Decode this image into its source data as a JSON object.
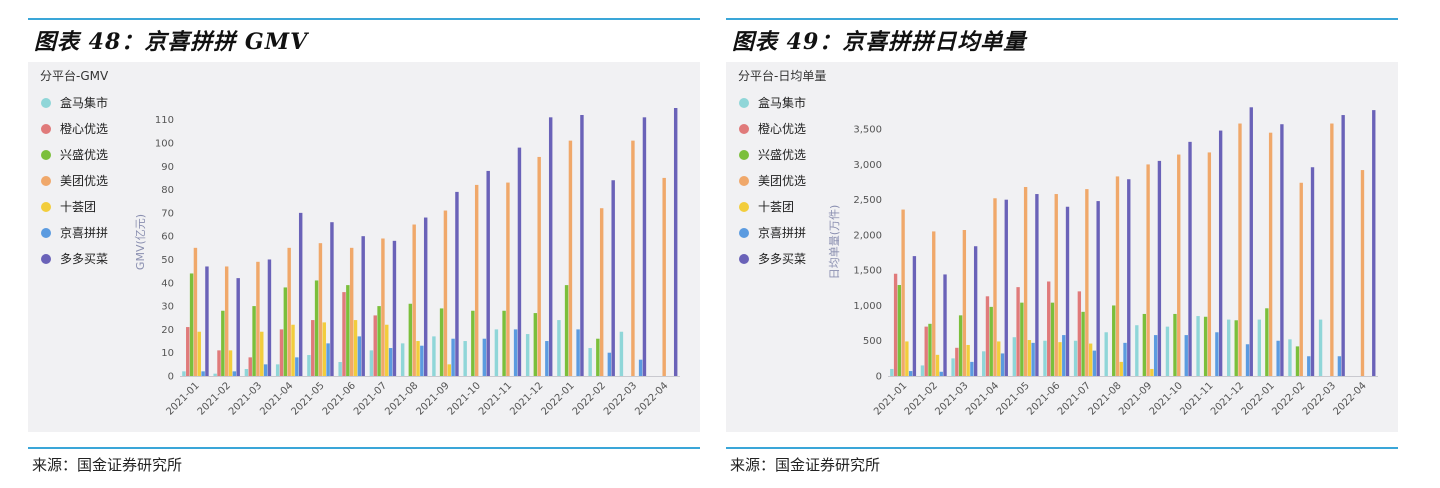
{
  "colors": {
    "hema": "#8fd6d8",
    "chengxin": "#e07a7a",
    "xingsheng": "#7bbf3b",
    "meituan": "#f0a86a",
    "shihuituan": "#f2cd3c",
    "jingxi": "#5b9be0",
    "duoduo": "#6a62b8"
  },
  "panels": [
    {
      "title": "图表 48：京喜拼拼 GMV",
      "source": "来源：国金证券研究所"
    },
    {
      "title": "图表 49：京喜拼拼日均单量",
      "source": "来源：国金证券研究所"
    }
  ],
  "chart_data": [
    {
      "type": "bar",
      "subtitle": "分平台-GMV",
      "ylabel": "GMV(亿元)",
      "ylim": [
        0,
        115
      ],
      "yticks": [
        0,
        10,
        20,
        30,
        40,
        50,
        60,
        70,
        80,
        90,
        100,
        110
      ],
      "legend_position": "left",
      "categories": [
        "2021-01",
        "2021-02",
        "2021-03",
        "2021-04",
        "2021-05",
        "2021-06",
        "2021-07",
        "2021-08",
        "2021-09",
        "2021-10",
        "2021-11",
        "2021-12",
        "2022-01",
        "2022-02",
        "2022-03",
        "2022-04"
      ],
      "series": [
        {
          "name": "盒马集市",
          "color_key": "hema",
          "values": [
            2,
            1,
            3,
            5,
            9,
            6,
            11,
            14,
            17,
            15,
            20,
            18,
            24,
            12,
            19,
            null
          ]
        },
        {
          "name": "橙心优选",
          "color_key": "chengxin",
          "values": [
            21,
            11,
            8,
            20,
            24,
            36,
            26,
            null,
            null,
            null,
            null,
            null,
            null,
            null,
            null,
            null
          ]
        },
        {
          "name": "兴盛优选",
          "color_key": "xingsheng",
          "values": [
            44,
            28,
            30,
            38,
            41,
            39,
            30,
            31,
            29,
            28,
            28,
            27,
            39,
            16,
            null,
            null
          ]
        },
        {
          "name": "美团优选",
          "color_key": "meituan",
          "values": [
            55,
            47,
            49,
            55,
            57,
            55,
            59,
            65,
            71,
            82,
            83,
            94,
            101,
            72,
            101,
            85
          ]
        },
        {
          "name": "十荟团",
          "color_key": "shihuituan",
          "values": [
            19,
            11,
            19,
            22,
            23,
            24,
            22,
            15,
            5,
            null,
            null,
            null,
            null,
            null,
            null,
            null
          ]
        },
        {
          "name": "京喜拼拼",
          "color_key": "jingxi",
          "values": [
            2,
            2,
            5,
            8,
            14,
            17,
            12,
            13,
            16,
            16,
            20,
            15,
            20,
            10,
            7,
            null
          ]
        },
        {
          "name": "多多买菜",
          "color_key": "duoduo",
          "values": [
            47,
            42,
            50,
            70,
            66,
            60,
            58,
            68,
            79,
            88,
            98,
            111,
            112,
            84,
            111,
            115
          ]
        }
      ]
    },
    {
      "type": "bar",
      "subtitle": "分平台-日均单量",
      "ylabel": "日均单量(万件)",
      "ylim": [
        0,
        3800
      ],
      "yticks": [
        0,
        500,
        1000,
        1500,
        2000,
        2500,
        3000,
        3500
      ],
      "ytick_labels": [
        "0",
        "500",
        "1,000",
        "1,500",
        "2,000",
        "2,500",
        "3,000",
        "3,500"
      ],
      "legend_position": "left",
      "categories": [
        "2021-01",
        "2021-02",
        "2021-03",
        "2021-04",
        "2021-05",
        "2021-06",
        "2021-07",
        "2021-08",
        "2021-09",
        "2021-10",
        "2021-11",
        "2021-12",
        "2022-01",
        "2022-02",
        "2022-03",
        "2022-04"
      ],
      "series": [
        {
          "name": "盒马集市",
          "color_key": "hema",
          "values": [
            100,
            150,
            250,
            350,
            550,
            500,
            500,
            620,
            720,
            700,
            850,
            800,
            800,
            520,
            800,
            null
          ]
        },
        {
          "name": "橙心优选",
          "color_key": "chengxin",
          "values": [
            1450,
            700,
            400,
            1130,
            1260,
            1340,
            1200,
            null,
            null,
            null,
            null,
            null,
            null,
            null,
            null,
            null
          ]
        },
        {
          "name": "兴盛优选",
          "color_key": "xingsheng",
          "values": [
            1290,
            740,
            860,
            980,
            1040,
            1040,
            910,
            1000,
            880,
            880,
            840,
            790,
            960,
            420,
            null,
            null
          ]
        },
        {
          "name": "美团优选",
          "color_key": "meituan",
          "values": [
            2360,
            2050,
            2070,
            2520,
            2680,
            2580,
            2650,
            2830,
            3000,
            3140,
            3170,
            3580,
            3450,
            2740,
            3580,
            2920
          ]
        },
        {
          "name": "十荟团",
          "color_key": "shihuituan",
          "values": [
            490,
            300,
            440,
            490,
            510,
            480,
            460,
            200,
            100,
            null,
            null,
            null,
            null,
            null,
            null,
            null
          ]
        },
        {
          "name": "京喜拼拼",
          "color_key": "jingxi",
          "values": [
            70,
            60,
            200,
            320,
            470,
            580,
            360,
            470,
            580,
            580,
            620,
            450,
            500,
            280,
            280,
            null
          ]
        },
        {
          "name": "多多买菜",
          "color_key": "duoduo",
          "values": [
            1700,
            1440,
            1840,
            2500,
            2580,
            2400,
            2480,
            2790,
            3050,
            3320,
            3480,
            3810,
            3570,
            2960,
            3700,
            3770
          ]
        }
      ]
    }
  ]
}
